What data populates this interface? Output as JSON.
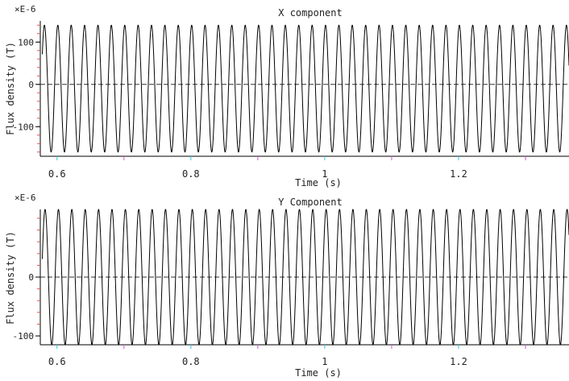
{
  "chart_data": [
    {
      "type": "line",
      "title": "X component",
      "multiplier_label": "×E-6",
      "xlabel": "Time (s)",
      "ylabel": "Flux density (T)",
      "xlim": [
        0.575,
        1.365
      ],
      "ylim": [
        -170,
        150
      ],
      "xticks": [
        {
          "value": 0.6,
          "label": "0.6"
        },
        {
          "value": 0.8,
          "label": "0.8"
        },
        {
          "value": 1.0,
          "label": "1"
        },
        {
          "value": 1.2,
          "label": "1.2"
        }
      ],
      "yticks": [
        {
          "value": 100,
          "label": "100"
        },
        {
          "value": 0,
          "label": "0"
        },
        {
          "value": -100,
          "label": "-100"
        }
      ],
      "zero_line": true,
      "series": [
        {
          "frequency_hz": 50,
          "amplitude": 150,
          "offset": -10,
          "phase_rad": 1.2,
          "start": 0.578,
          "end": 1.365,
          "color": "#000000"
        }
      ]
    },
    {
      "type": "line",
      "title": "Y Component",
      "multiplier_label": "×E-6",
      "xlabel": "Time (s)",
      "ylabel": "Flux density (T)",
      "xlim": [
        0.575,
        1.365
      ],
      "ylim": [
        -115,
        115
      ],
      "xticks": [
        {
          "value": 0.6,
          "label": "0.6"
        },
        {
          "value": 0.8,
          "label": "0.8"
        },
        {
          "value": 1.0,
          "label": "1"
        },
        {
          "value": 1.2,
          "label": "1.2"
        }
      ],
      "yticks": [
        {
          "value": 0,
          "label": "0"
        },
        {
          "value": -100,
          "label": "-100"
        }
      ],
      "zero_line": true,
      "series": [
        {
          "frequency_hz": 50,
          "amplitude": 115,
          "offset": 0,
          "phase_rad": 0.9,
          "start": 0.578,
          "end": 1.365,
          "color": "#000000"
        }
      ]
    }
  ]
}
